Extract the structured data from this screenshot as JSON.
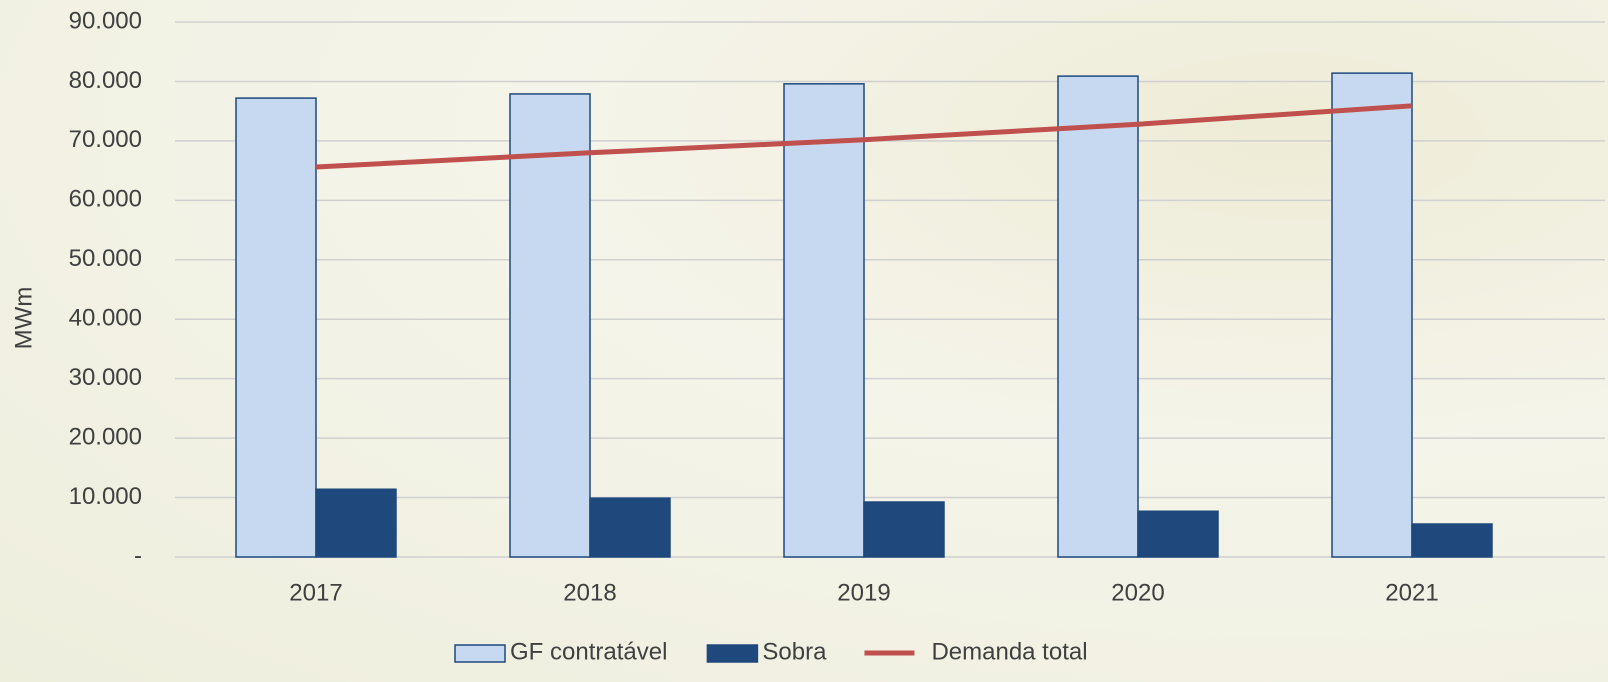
{
  "chart_data": {
    "type": "bar",
    "y_label": "MWm",
    "categories": [
      "2017",
      "2018",
      "2019",
      "2020",
      "2021"
    ],
    "series": [
      {
        "name": "GF contratável",
        "type": "bar",
        "color": "#c6d9f1",
        "values": [
          77200,
          77900,
          79600,
          80900,
          81400
        ]
      },
      {
        "name": "Sobra",
        "type": "bar",
        "color": "#1f497d",
        "values": [
          11400,
          9900,
          9250,
          7700,
          5550
        ]
      },
      {
        "name": "Demanda total",
        "type": "line",
        "color": "#c0504d",
        "values": [
          65600,
          68000,
          70200,
          72800,
          75900
        ]
      }
    ],
    "ylim": [
      0,
      90000
    ],
    "yticks": [
      {
        "value": 0,
        "label": "-"
      },
      {
        "value": 10000,
        "label": "10.000"
      },
      {
        "value": 20000,
        "label": "20.000"
      },
      {
        "value": 30000,
        "label": "30.000"
      },
      {
        "value": 40000,
        "label": "40.000"
      },
      {
        "value": 50000,
        "label": "50.000"
      },
      {
        "value": 60000,
        "label": "60.000"
      },
      {
        "value": 70000,
        "label": "70.000"
      },
      {
        "value": 80000,
        "label": "80.000"
      },
      {
        "value": 90000,
        "label": "90.000"
      }
    ],
    "grid": true,
    "legend": "bottom"
  }
}
